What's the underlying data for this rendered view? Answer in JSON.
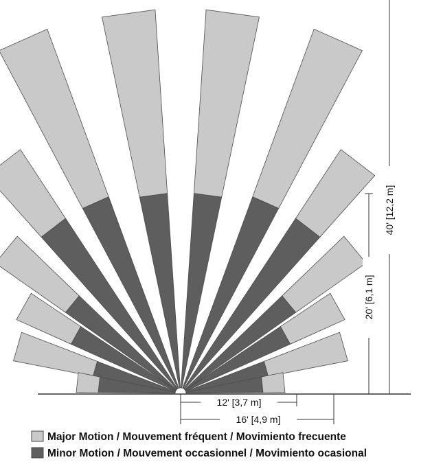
{
  "colors": {
    "major": "#c9c9c9",
    "minor": "#5e5e5e",
    "stroke": "#4a4a4a",
    "line": "#333333"
  },
  "dimensions": {
    "h40": "40' [12,2 m]",
    "h20": "20' [6,1 m]",
    "w12": "12' [3,7 m]",
    "w16": "16' [4,9 m]"
  },
  "legend": [
    {
      "key": "major",
      "label": "Major Motion / Mouvement fréquent / Movimiento frecuente"
    },
    {
      "key": "minor",
      "label": "Minor Motion / Mouvement occasionnel / Movimiento ocasional"
    }
  ]
}
